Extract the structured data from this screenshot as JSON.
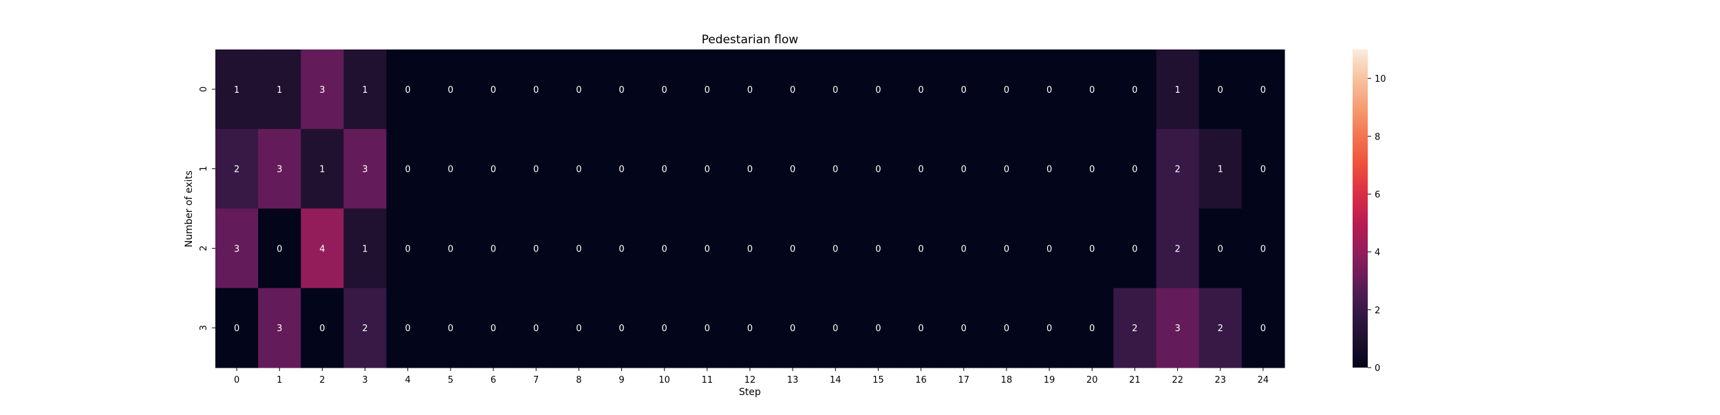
{
  "chart_data": {
    "type": "heatmap",
    "title": "Pedestarian flow",
    "xlabel": "Step",
    "ylabel": "Number of exits",
    "x_categories": [
      "0",
      "1",
      "2",
      "3",
      "4",
      "5",
      "6",
      "7",
      "8",
      "9",
      "10",
      "11",
      "12",
      "13",
      "14",
      "15",
      "16",
      "17",
      "18",
      "19",
      "20",
      "21",
      "22",
      "23",
      "24"
    ],
    "y_categories": [
      "0",
      "1",
      "2",
      "3"
    ],
    "values": [
      [
        1,
        1,
        3,
        1,
        0,
        0,
        0,
        0,
        0,
        0,
        0,
        0,
        0,
        0,
        0,
        0,
        0,
        0,
        0,
        0,
        0,
        0,
        1,
        0,
        0
      ],
      [
        2,
        3,
        1,
        3,
        0,
        0,
        0,
        0,
        0,
        0,
        0,
        0,
        0,
        0,
        0,
        0,
        0,
        0,
        0,
        0,
        0,
        0,
        2,
        1,
        0
      ],
      [
        3,
        0,
        4,
        1,
        0,
        0,
        0,
        0,
        0,
        0,
        0,
        0,
        0,
        0,
        0,
        0,
        0,
        0,
        0,
        0,
        0,
        0,
        2,
        0,
        0
      ],
      [
        0,
        3,
        0,
        2,
        0,
        0,
        0,
        0,
        0,
        0,
        0,
        0,
        0,
        0,
        0,
        0,
        0,
        0,
        0,
        0,
        0,
        2,
        3,
        2,
        0
      ]
    ],
    "colorbar": {
      "range": [
        0,
        11
      ],
      "ticks": [
        "0",
        "2",
        "4",
        "6",
        "8",
        "10"
      ],
      "colormap": "rocket"
    }
  }
}
